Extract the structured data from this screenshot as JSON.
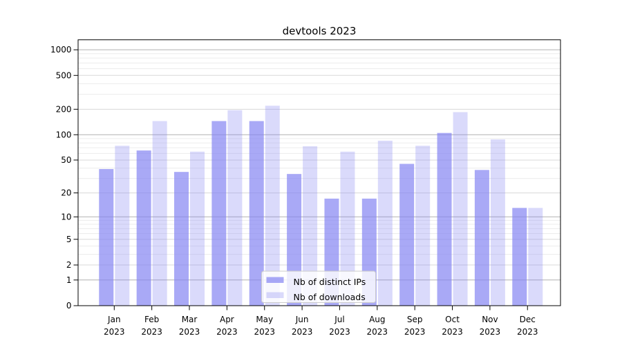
{
  "figure": {
    "background_color": "#ffffff",
    "plot_border_color": "#000000"
  },
  "chart_data": {
    "type": "bar",
    "title": "devtools 2023",
    "months": [
      "Jan",
      "Feb",
      "Mar",
      "Apr",
      "May",
      "Jun",
      "Jul",
      "Aug",
      "Sep",
      "Oct",
      "Nov",
      "Dec"
    ],
    "year_label": "2023",
    "series": [
      {
        "name": "Nb of distinct IPs",
        "color": "rgba(133,133,242,0.7)",
        "values": [
          39,
          65,
          36,
          145,
          145,
          34,
          17,
          17,
          45,
          105,
          38,
          13
        ]
      },
      {
        "name": "Nb of downloads",
        "color": "rgba(133,133,242,0.3)",
        "values": [
          74,
          145,
          63,
          195,
          220,
          73,
          63,
          85,
          74,
          185,
          88,
          13
        ]
      }
    ],
    "yscale": "symlog (position proportional to log10(1+y))",
    "yticks": [
      0,
      1,
      2,
      5,
      10,
      20,
      50,
      100,
      200,
      500,
      1000
    ],
    "yticks_minor": [
      3,
      4,
      6,
      7,
      8,
      9,
      30,
      40,
      60,
      70,
      80,
      90,
      300,
      400,
      600,
      700,
      800,
      900
    ],
    "ylim": [
      0,
      1300
    ],
    "grid": "on",
    "legend_position": "lower center",
    "grid_colors": {
      "power_of_ten": "#b0b0b0",
      "major": "#d8d8d8",
      "minor": "#ececec"
    }
  }
}
